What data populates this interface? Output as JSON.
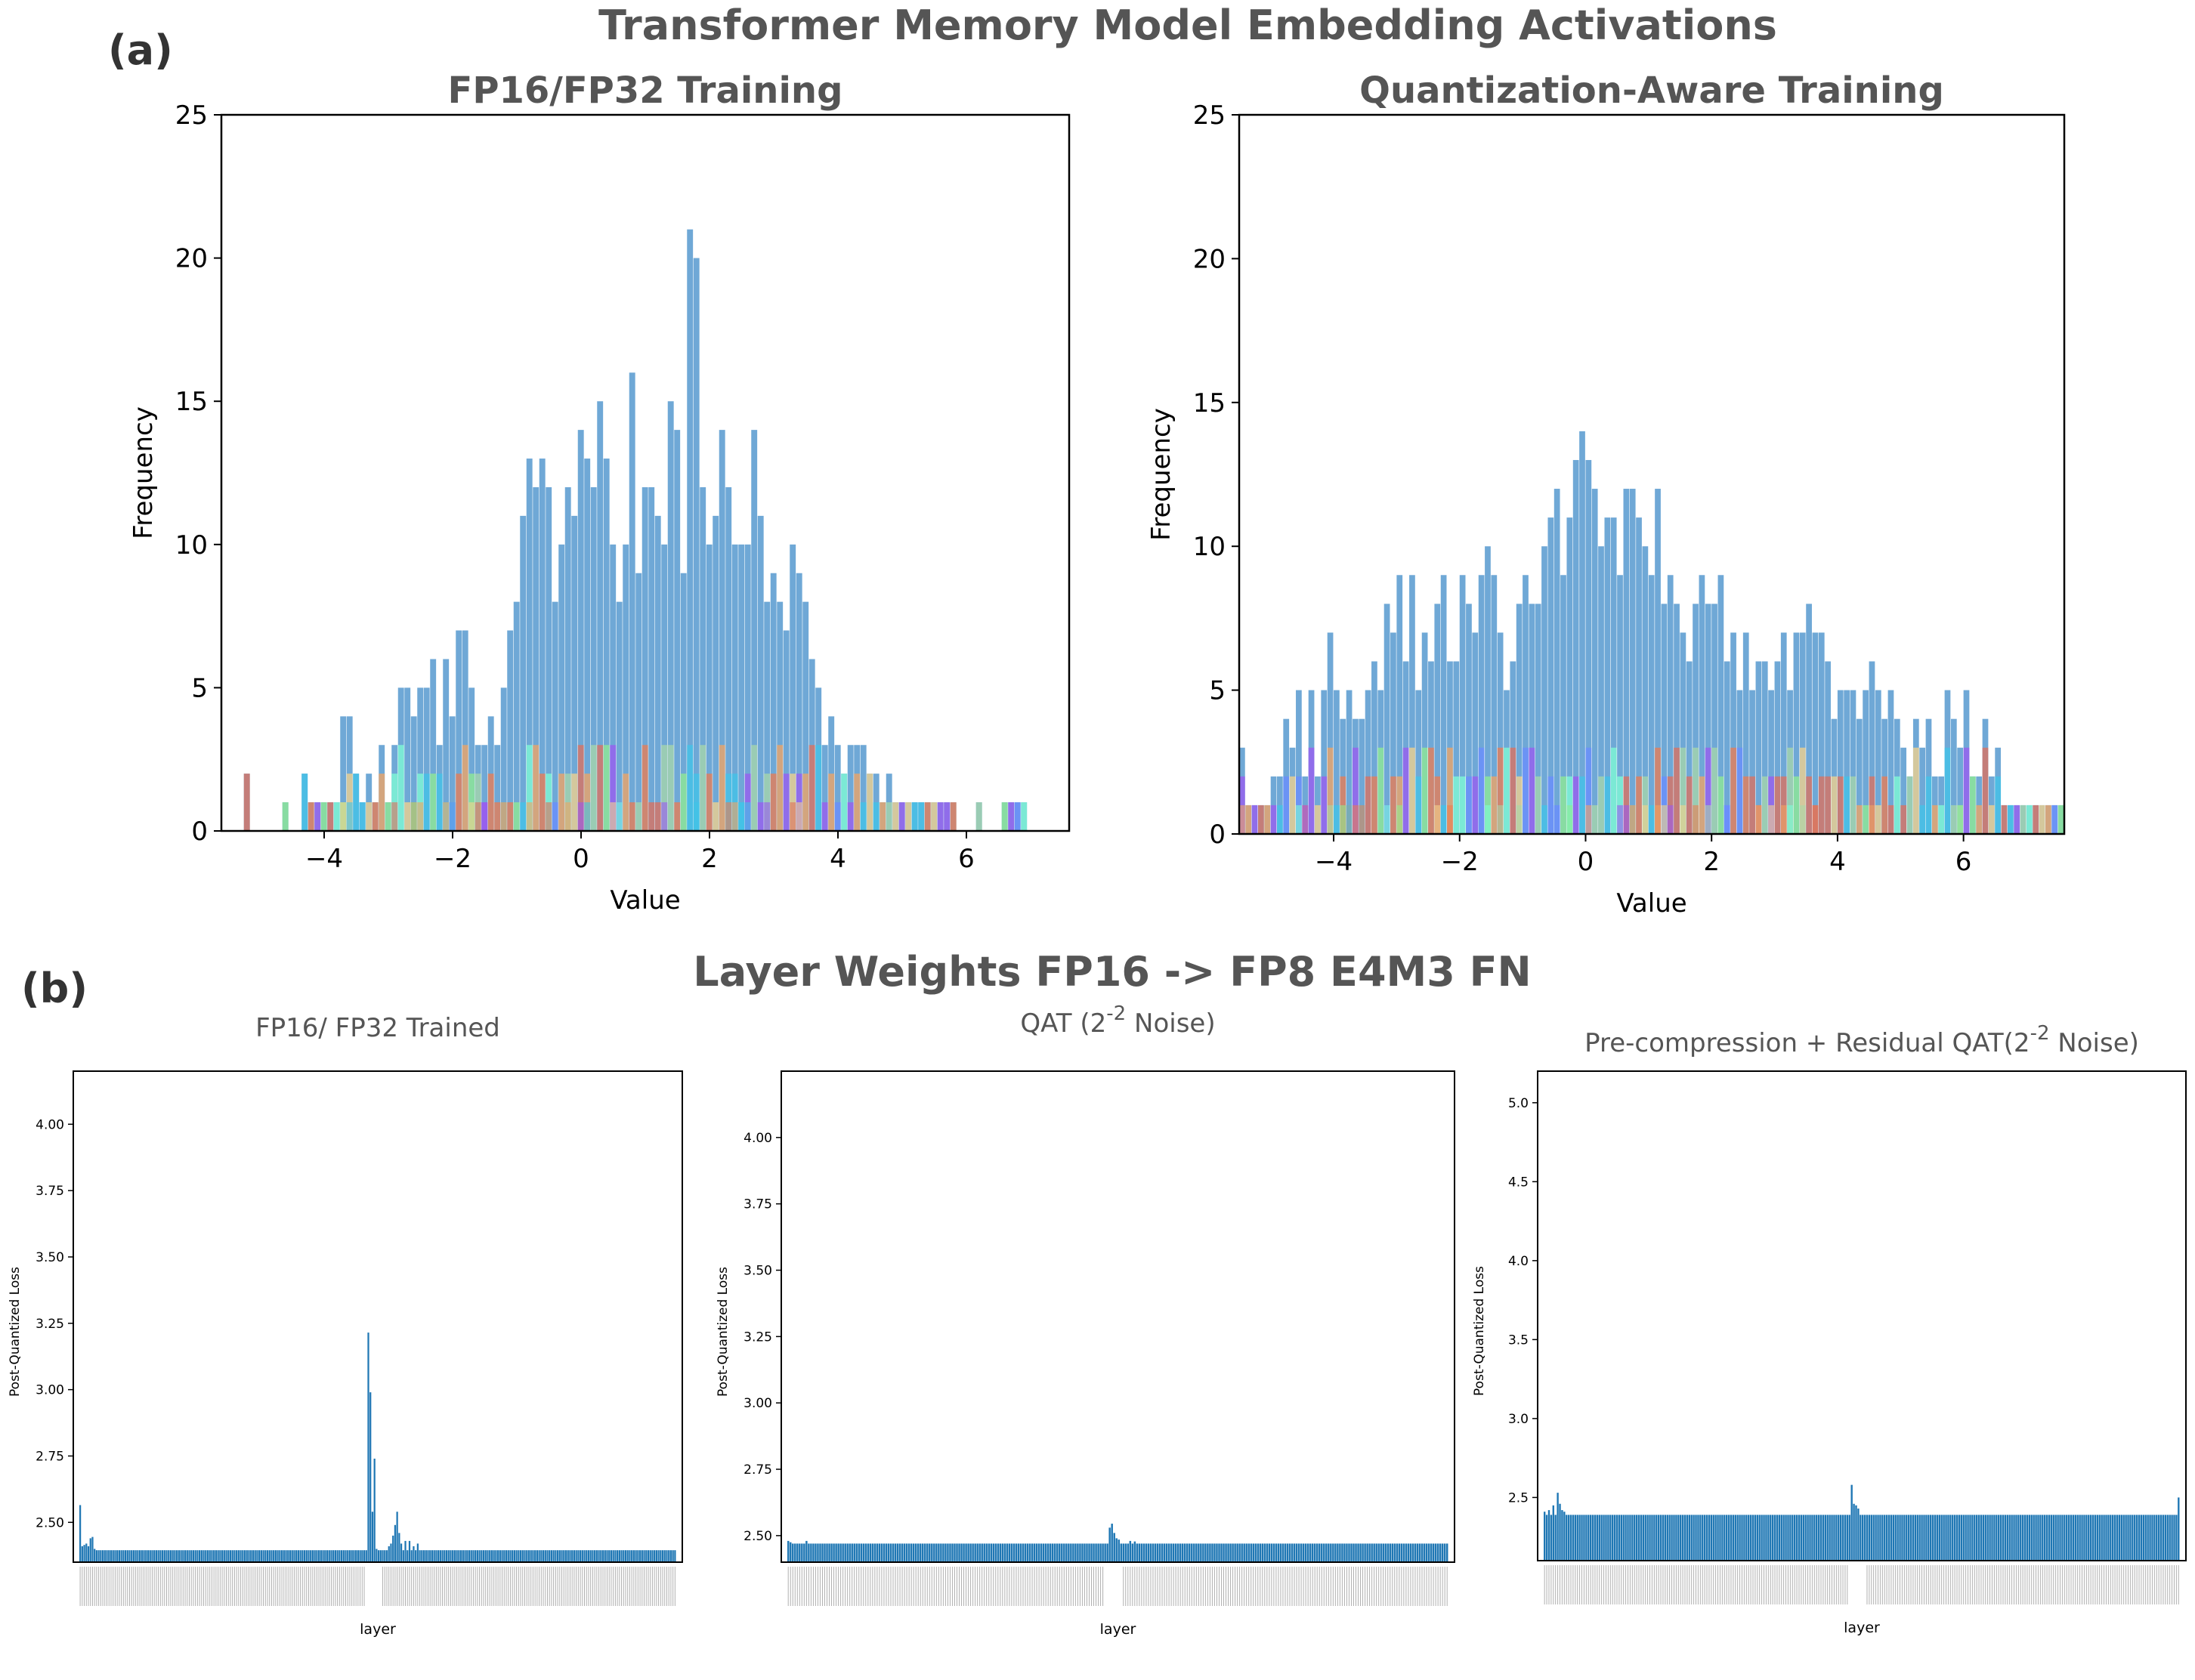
{
  "figure": {
    "panel_a_label": "(a)",
    "panel_b_label": "(b)",
    "suptitle_a": "Transformer Memory Model Embedding Activations",
    "suptitle_b": "Layer Weights FP16 -> FP8 E4M3 FN"
  },
  "chart_data": [
    {
      "type": "bar",
      "id": "hist-fp",
      "title": "FP16/FP32 Training",
      "xlabel": "Value",
      "ylabel": "Frequency",
      "xlim": [
        -5.6,
        7.6
      ],
      "ylim": [
        0,
        25
      ],
      "xticks": [
        -4,
        -2,
        0,
        2,
        4,
        6
      ],
      "yticks": [
        0,
        5,
        10,
        15,
        20,
        25
      ],
      "bin_start": -5.25,
      "bin_width": 0.1,
      "main_color": "#6fa8d6",
      "values": [
        2,
        0,
        0,
        0,
        0,
        0,
        1,
        0,
        0,
        2,
        1,
        1,
        1,
        1,
        1,
        4,
        4,
        2,
        1,
        2,
        1,
        3,
        1,
        3,
        5,
        5,
        4,
        5,
        5,
        6,
        3,
        6,
        4,
        7,
        7,
        5,
        3,
        3,
        4,
        3,
        5,
        7,
        8,
        11,
        13,
        12,
        13,
        12,
        8,
        10,
        12,
        11,
        14,
        13,
        12,
        15,
        13,
        10,
        8,
        10,
        16,
        9,
        12,
        12,
        11,
        10,
        15,
        14,
        9,
        21,
        20,
        12,
        10,
        11,
        14,
        12,
        10,
        10,
        10,
        14,
        11,
        8,
        9,
        8,
        7,
        10,
        9,
        8,
        6,
        5,
        3,
        4,
        3,
        2,
        3,
        3,
        3,
        2,
        2,
        1,
        2,
        1,
        1,
        1,
        1,
        1,
        1,
        1,
        1,
        1,
        1,
        0,
        0,
        0,
        1,
        0,
        0,
        0,
        1,
        1,
        1,
        1,
        0,
        0,
        0,
        0,
        0,
        0,
        0,
        0,
        0,
        0,
        0,
        0,
        0,
        0,
        0,
        0,
        0,
        0,
        0,
        0
      ],
      "overlay_seed": 17
    },
    {
      "type": "bar",
      "id": "hist-qat",
      "title": "Quantization-Aware Training",
      "xlabel": "Value",
      "ylabel": "Frequency",
      "xlim": [
        -5.5,
        7.6
      ],
      "ylim": [
        0,
        25
      ],
      "xticks": [
        -4,
        -2,
        0,
        2,
        4,
        6
      ],
      "yticks": [
        0,
        5,
        10,
        15,
        20,
        25
      ],
      "bin_start": -5.5,
      "bin_width": 0.1,
      "main_color": "#6fa8d6",
      "values": [
        3,
        1,
        1,
        1,
        1,
        2,
        2,
        4,
        3,
        5,
        2,
        5,
        2,
        5,
        7,
        5,
        4,
        5,
        4,
        4,
        5,
        6,
        5,
        8,
        7,
        9,
        6,
        9,
        5,
        7,
        6,
        8,
        9,
        6,
        6,
        9,
        8,
        7,
        9,
        10,
        9,
        7,
        5,
        6,
        8,
        9,
        8,
        8,
        10,
        11,
        12,
        9,
        11,
        13,
        14,
        13,
        12,
        10,
        11,
        11,
        9,
        12,
        12,
        11,
        10,
        9,
        12,
        8,
        9,
        8,
        7,
        6,
        8,
        9,
        8,
        8,
        9,
        6,
        7,
        5,
        7,
        5,
        6,
        6,
        5,
        6,
        7,
        5,
        7,
        7,
        8,
        7,
        7,
        6,
        4,
        5,
        5,
        5,
        4,
        5,
        6,
        5,
        4,
        5,
        4,
        3,
        2,
        4,
        3,
        4,
        2,
        2,
        5,
        4,
        3,
        5,
        2,
        2,
        4,
        2,
        3,
        1,
        1,
        1,
        1,
        1,
        1,
        1,
        1,
        1,
        1
      ],
      "overlay_seed": 91
    },
    {
      "type": "bar",
      "id": "layer-fp",
      "title": "FP16/ FP32 Trained",
      "xlabel": "layer",
      "ylabel": "Post-Quantized Loss",
      "ylim": [
        2.35,
        4.2
      ],
      "yticks": [
        2.5,
        2.75,
        3.0,
        3.25,
        3.5,
        3.75,
        4.0
      ],
      "ytick_labels": [
        "2.50",
        "2.75",
        "3.00",
        "3.25",
        "3.50",
        "3.75",
        "4.00"
      ],
      "color": "#1f77b4",
      "baseline": 2.395,
      "num_layers": 290,
      "spikes": [
        [
          0,
          2.565
        ],
        [
          1,
          2.41
        ],
        [
          2,
          2.415
        ],
        [
          3,
          2.42
        ],
        [
          4,
          2.41
        ],
        [
          5,
          2.44
        ],
        [
          6,
          2.445
        ],
        [
          7,
          2.4
        ],
        [
          140,
          3.215
        ],
        [
          141,
          2.99
        ],
        [
          142,
          2.54
        ],
        [
          143,
          2.74
        ],
        [
          144,
          2.4
        ],
        [
          150,
          2.41
        ],
        [
          151,
          2.42
        ],
        [
          152,
          2.45
        ],
        [
          153,
          2.49
        ],
        [
          154,
          2.54
        ],
        [
          155,
          2.46
        ],
        [
          156,
          2.42
        ],
        [
          158,
          2.43
        ],
        [
          160,
          2.43
        ],
        [
          162,
          2.41
        ],
        [
          164,
          2.42
        ]
      ]
    },
    {
      "type": "bar",
      "id": "layer-qat",
      "title": "QAT (2",
      "title_sup": "-2",
      "title_tail": " Noise)",
      "xlabel": "layer",
      "ylabel": "Post-Quantized Loss",
      "ylim": [
        2.4,
        4.25
      ],
      "yticks": [
        2.5,
        2.75,
        3.0,
        3.25,
        3.5,
        3.75,
        4.0
      ],
      "ytick_labels": [
        "2.50",
        "2.75",
        "3.00",
        "3.25",
        "3.50",
        "3.75",
        "4.00"
      ],
      "color": "#1f77b4",
      "baseline": 2.47,
      "num_layers": 290,
      "spikes": [
        [
          0,
          2.48
        ],
        [
          1,
          2.475
        ],
        [
          8,
          2.48
        ],
        [
          141,
          2.53
        ],
        [
          142,
          2.545
        ],
        [
          143,
          2.51
        ],
        [
          144,
          2.49
        ],
        [
          145,
          2.485
        ],
        [
          150,
          2.48
        ],
        [
          152,
          2.478
        ]
      ]
    },
    {
      "type": "bar",
      "id": "layer-pc",
      "title": "Pre-compression + Residual QAT(2",
      "title_sup": "-2",
      "title_tail": " Noise)",
      "xlabel": "layer",
      "ylabel": "Post-Quantized Loss",
      "ylim": [
        2.1,
        5.2
      ],
      "yticks": [
        2.5,
        3.0,
        3.5,
        4.0,
        4.5,
        5.0
      ],
      "ytick_labels": [
        "2.5",
        "3.0",
        "3.5",
        "4.0",
        "4.5",
        "5.0"
      ],
      "color": "#1f77b4",
      "baseline": 2.39,
      "num_layers": 290,
      "spikes": [
        [
          0,
          2.41
        ],
        [
          2,
          2.42
        ],
        [
          4,
          2.45
        ],
        [
          6,
          2.53
        ],
        [
          7,
          2.46
        ],
        [
          8,
          2.42
        ],
        [
          9,
          2.41
        ],
        [
          140,
          2.58
        ],
        [
          141,
          2.46
        ],
        [
          142,
          2.45
        ],
        [
          143,
          2.43
        ],
        [
          289,
          2.5
        ]
      ]
    }
  ]
}
